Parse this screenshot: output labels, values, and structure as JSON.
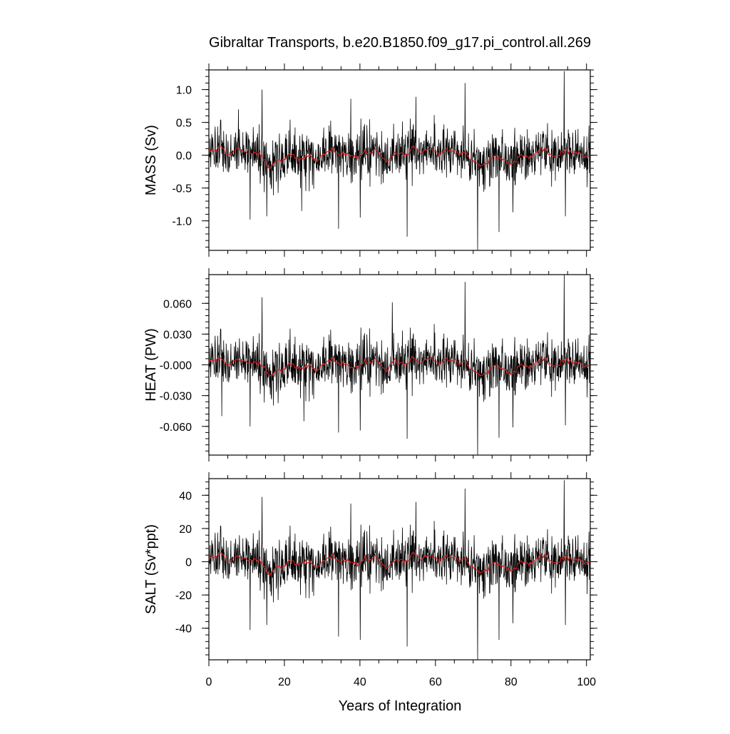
{
  "chart_data": {
    "title": "Gibraltar Transports, b.e20.B1850.f09_g17.pi_control.all.269",
    "xlabel": "Years of Integration",
    "x_ticks": [
      "0",
      "20",
      "40",
      "60",
      "80",
      "100"
    ],
    "xlim": [
      0,
      101
    ],
    "panels": [
      {
        "type": "line",
        "ylabel": "MASS (Sv)",
        "ylim": [
          -1.45,
          1.3
        ],
        "y_ticks": [
          1.0,
          0.5,
          0.0,
          -0.5,
          -1.0
        ],
        "y_tick_labels": [
          "1.0",
          "0.5",
          "0.0",
          "-0.5",
          "-1.0"
        ],
        "noise_amplitude": 0.2,
        "smooth_scale": 0.1,
        "series": [
          {
            "color": "#000000",
            "values": [
              {
                "x": 7.8,
                "y": 0.7
              },
              {
                "x": 10.9,
                "y": -0.98
              },
              {
                "x": 14.1,
                "y": 1.0
              },
              {
                "x": 15.3,
                "y": -0.93
              },
              {
                "x": 24.6,
                "y": -0.85
              },
              {
                "x": 34.3,
                "y": -1.12
              },
              {
                "x": 37.6,
                "y": 0.86
              },
              {
                "x": 40.1,
                "y": -0.95
              },
              {
                "x": 52.5,
                "y": -1.24
              },
              {
                "x": 54.8,
                "y": 0.89
              },
              {
                "x": 67.8,
                "y": 1.1
              },
              {
                "x": 71.2,
                "y": -1.44
              },
              {
                "x": 76.8,
                "y": -1.17
              },
              {
                "x": 80.5,
                "y": -0.87
              },
              {
                "x": 94.1,
                "y": 1.28
              },
              {
                "x": 94.4,
                "y": -0.93
              }
            ]
          },
          {
            "color": "#d62020",
            "values": []
          }
        ]
      },
      {
        "type": "line",
        "ylabel": "HEAT (PW)",
        "ylim": [
          -0.088,
          0.088
        ],
        "y_ticks": [
          0.06,
          0.03,
          0.0,
          -0.03,
          -0.06
        ],
        "y_tick_labels": [
          "0.060",
          "0.030",
          "-0.000",
          "-0.030",
          "-0.060"
        ],
        "noise_amplitude": 0.013,
        "smooth_scale": 0.0065,
        "series": [
          {
            "color": "#000000",
            "values": [
              {
                "x": 3.4,
                "y": -0.05
              },
              {
                "x": 10.9,
                "y": -0.06
              },
              {
                "x": 14.1,
                "y": 0.066
              },
              {
                "x": 25.2,
                "y": -0.055
              },
              {
                "x": 34.3,
                "y": -0.066
              },
              {
                "x": 40.1,
                "y": -0.064
              },
              {
                "x": 52.5,
                "y": -0.072
              },
              {
                "x": 48.6,
                "y": 0.061
              },
              {
                "x": 67.8,
                "y": 0.081
              },
              {
                "x": 71.2,
                "y": -0.088
              },
              {
                "x": 76.8,
                "y": -0.071
              },
              {
                "x": 80.5,
                "y": -0.061
              },
              {
                "x": 94.1,
                "y": 0.088
              },
              {
                "x": 94.4,
                "y": -0.059
              }
            ]
          },
          {
            "color": "#d62020",
            "values": []
          }
        ]
      },
      {
        "type": "line",
        "ylabel": "SALT (Sv*ppt)",
        "ylim": [
          -59,
          50
        ],
        "y_ticks": [
          40,
          20,
          0,
          -20,
          -40
        ],
        "y_tick_labels": [
          "40",
          "20",
          "0",
          "-20",
          "-40"
        ],
        "noise_amplitude": 8,
        "smooth_scale": 4,
        "series": [
          {
            "color": "#000000",
            "values": [
              {
                "x": 10.9,
                "y": -41
              },
              {
                "x": 14.1,
                "y": 39
              },
              {
                "x": 15.3,
                "y": -38
              },
              {
                "x": 34.3,
                "y": -45
              },
              {
                "x": 37.6,
                "y": 35
              },
              {
                "x": 40.1,
                "y": -47
              },
              {
                "x": 52.5,
                "y": -51
              },
              {
                "x": 54.8,
                "y": 36
              },
              {
                "x": 67.8,
                "y": 44
              },
              {
                "x": 71.2,
                "y": -59
              },
              {
                "x": 76.8,
                "y": -47
              },
              {
                "x": 80.5,
                "y": -37
              },
              {
                "x": 94.1,
                "y": 49
              },
              {
                "x": 94.4,
                "y": -38
              }
            ]
          },
          {
            "color": "#d62020",
            "values": []
          }
        ]
      }
    ]
  }
}
